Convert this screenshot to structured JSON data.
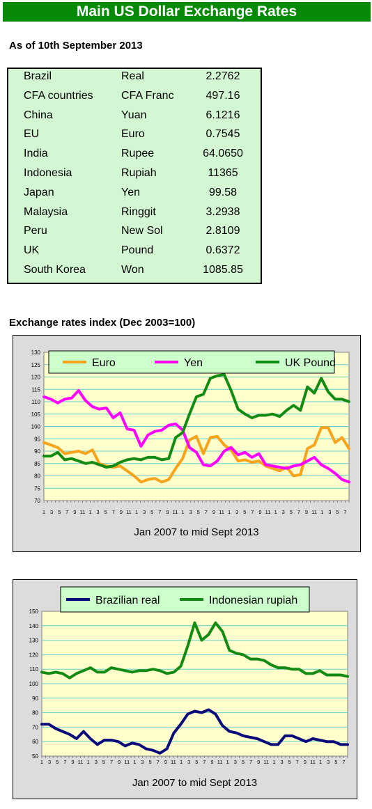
{
  "header": {
    "title": "Main US Dollar Exchange Rates",
    "as_of": "As of 10th September 2013"
  },
  "rates": [
    {
      "country": "Brazil",
      "currency": "Real",
      "value": "2.2762"
    },
    {
      "country": "CFA countries",
      "currency": "CFA Franc",
      "value": "497.16"
    },
    {
      "country": "China",
      "currency": "Yuan",
      "value": "6.1216"
    },
    {
      "country": "EU",
      "currency": "Euro",
      "value": "0.7545"
    },
    {
      "country": "India",
      "currency": "Rupee",
      "value": "64.0650"
    },
    {
      "country": "Indonesia",
      "currency": "Rupiah",
      "value": "11365"
    },
    {
      "country": "Japan",
      "currency": "Yen",
      "value": "99.58"
    },
    {
      "country": "Malaysia",
      "currency": "Ringgit",
      "value": "3.2938"
    },
    {
      "country": "Peru",
      "currency": "New Sol",
      "value": "2.8109"
    },
    {
      "country": "UK",
      "currency": "Pound",
      "value": "0.6372"
    },
    {
      "country": "South Korea",
      "currency": "Won",
      "value": "1085.85"
    }
  ],
  "index_heading": "Exchange rates index (Dec 2003=100)",
  "chart_data": [
    {
      "type": "line",
      "title": "",
      "xlabel": "Jan 2007 to mid Sept 2013",
      "ylabel": "",
      "ylim": [
        70,
        130
      ],
      "yticks": [
        70,
        75,
        80,
        85,
        90,
        95,
        100,
        105,
        110,
        115,
        120,
        125,
        130
      ],
      "x_tick_labels": [
        "1",
        "",
        "3",
        "",
        "5",
        "",
        "7",
        "",
        "9",
        "",
        "11",
        "",
        "1",
        "",
        "3",
        "",
        "5",
        "",
        "7",
        "",
        "9",
        "",
        "11",
        "",
        "1",
        "",
        "3",
        "",
        "5",
        "",
        "7",
        "",
        "9",
        "",
        "11",
        "",
        "1",
        "",
        "3",
        "",
        "5",
        "",
        "7",
        "",
        "9",
        "",
        "11",
        "",
        "1",
        "",
        "3",
        "",
        "5",
        "",
        "7",
        "",
        "9",
        "",
        "11",
        "",
        "1",
        "",
        "3",
        "",
        "5",
        "",
        "7",
        "",
        "9",
        "",
        "11",
        "",
        "1",
        "",
        "3",
        "",
        "5",
        "",
        "7",
        ""
      ],
      "grid": true,
      "plot_background": "#ffffcc",
      "legend_position": "top",
      "series": [
        {
          "name": "Euro",
          "color": "#f7a31c",
          "values": [
            93.5,
            92.5,
            91.5,
            89.0,
            89.5,
            90.0,
            89.0,
            90.5,
            85.0,
            84.0,
            83.5,
            84.0,
            82.0,
            80.0,
            77.5,
            78.5,
            79.0,
            77.5,
            78.5,
            83.0,
            87.0,
            94.5,
            96.0,
            89.0,
            95.5,
            96.0,
            92.5,
            90.5,
            86.0,
            86.5,
            85.5,
            86.0,
            84.0,
            83.0,
            82.0,
            83.5,
            80.0,
            80.5,
            91.0,
            92.5,
            99.5,
            99.5,
            93.5,
            95.5,
            91.0
          ]
        },
        {
          "name": "Yen",
          "color": "#ff00ff",
          "values": [
            112.0,
            111.0,
            109.5,
            111.0,
            111.5,
            114.5,
            110.5,
            108.0,
            107.0,
            107.5,
            103.5,
            105.5,
            99.0,
            98.5,
            92.0,
            96.5,
            98.0,
            98.5,
            100.5,
            101.0,
            98.5,
            91.5,
            89.5,
            84.5,
            84.0,
            86.0,
            90.0,
            91.5,
            88.5,
            89.5,
            87.5,
            89.0,
            84.5,
            84.0,
            83.5,
            83.0,
            84.0,
            84.5,
            86.0,
            87.5,
            84.5,
            83.0,
            81.0,
            78.5,
            77.5
          ]
        },
        {
          "name": "UK Pound",
          "color": "#138a13",
          "values": [
            88.0,
            88.0,
            89.5,
            86.5,
            87.0,
            86.0,
            85.0,
            85.5,
            84.5,
            83.5,
            84.0,
            85.5,
            86.5,
            87.0,
            86.5,
            87.5,
            87.5,
            86.5,
            87.0,
            95.5,
            97.5,
            105.0,
            112.0,
            113.0,
            119.5,
            120.5,
            121.0,
            114.5,
            107.0,
            105.0,
            103.5,
            104.5,
            104.5,
            105.0,
            104.0,
            106.5,
            108.5,
            106.5,
            116.0,
            113.5,
            119.5,
            114.0,
            111.0,
            111.0,
            110.0
          ]
        }
      ]
    },
    {
      "type": "line",
      "title": "",
      "xlabel": "Jan 2007 to mid Sept 2013",
      "ylabel": "",
      "ylim": [
        50,
        150
      ],
      "yticks": [
        50,
        60,
        70,
        80,
        90,
        100,
        110,
        120,
        130,
        140,
        150
      ],
      "x_tick_labels": [
        "1",
        "",
        "3",
        "",
        "5",
        "",
        "7",
        "",
        "9",
        "",
        "11",
        "",
        "1",
        "",
        "3",
        "",
        "5",
        "",
        "7",
        "",
        "9",
        "",
        "11",
        "",
        "1",
        "",
        "3",
        "",
        "5",
        "",
        "7",
        "",
        "9",
        "",
        "11",
        "",
        "1",
        "",
        "3",
        "",
        "5",
        "",
        "7",
        "",
        "9",
        "",
        "11",
        "",
        "1",
        "",
        "3",
        "",
        "5",
        "",
        "7",
        "",
        "9",
        "",
        "11",
        "",
        "1",
        "",
        "3",
        "",
        "5",
        "",
        "7",
        "",
        "9",
        "",
        "11",
        "",
        "1",
        "",
        "3",
        "",
        "5",
        "",
        "7",
        ""
      ],
      "grid": true,
      "plot_background": "#ffffcc",
      "legend_position": "top",
      "series": [
        {
          "name": "Brazilian real",
          "color": "#0a0a7a",
          "values": [
            72,
            72,
            69,
            67,
            65,
            62,
            67,
            62,
            58,
            61,
            61,
            60,
            57,
            59,
            58,
            55,
            54,
            52,
            55,
            66,
            72,
            79,
            81,
            80,
            82,
            79,
            71,
            67,
            66,
            64,
            63,
            62,
            60,
            58,
            58,
            64,
            64,
            62,
            60,
            62,
            61,
            60,
            60,
            58,
            58
          ]
        },
        {
          "name": "Indonesian rupiah",
          "color": "#138a13",
          "values": [
            108,
            107,
            108,
            107,
            104,
            107,
            109,
            111,
            108,
            108,
            111,
            110,
            109,
            108,
            109,
            109,
            110,
            109,
            107,
            108,
            112,
            126,
            142,
            130,
            134,
            142,
            136,
            123,
            121,
            120,
            117,
            117,
            116,
            113,
            111,
            111,
            110,
            110,
            107,
            107,
            109,
            106,
            106,
            106,
            105
          ]
        }
      ]
    }
  ]
}
